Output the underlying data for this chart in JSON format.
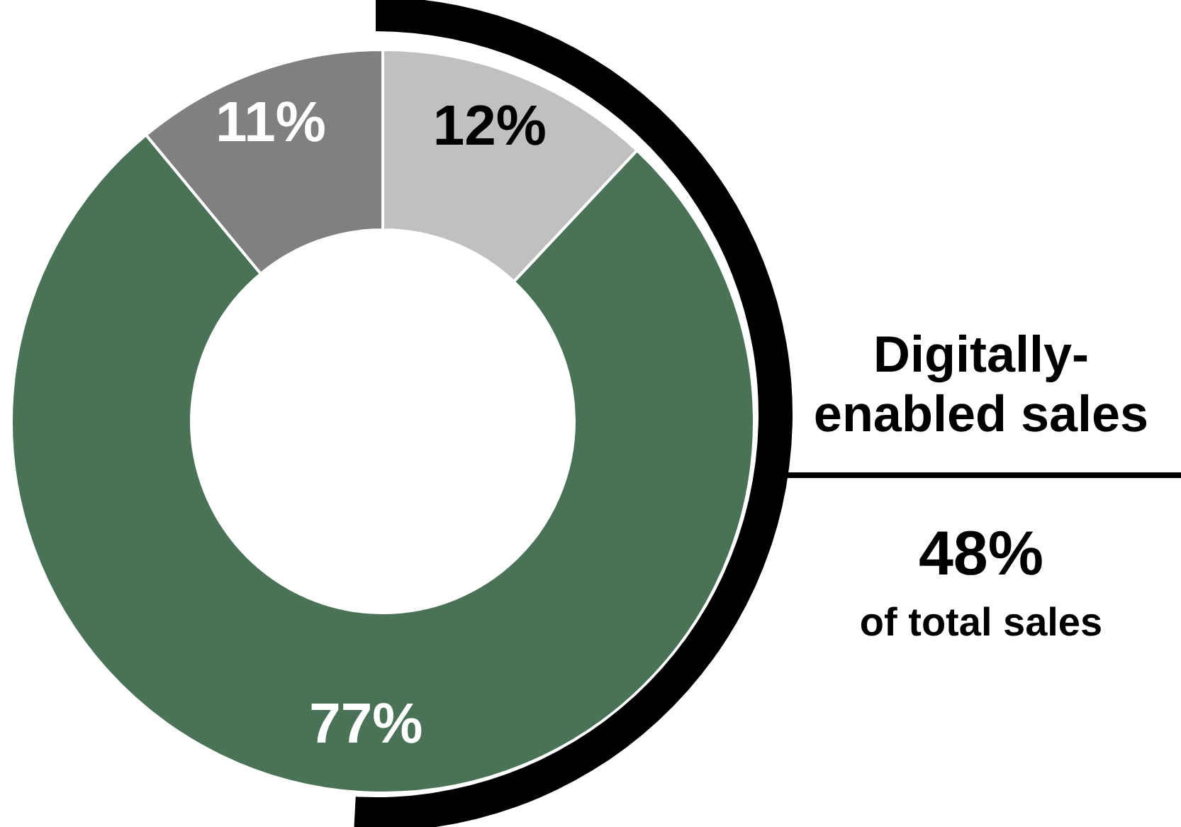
{
  "chart_data": {
    "type": "donut",
    "categories": [
      null,
      null,
      null
    ],
    "values": [
      12,
      77,
      11
    ],
    "colors": [
      "#c0c0c0",
      "#4a7257",
      "#808080"
    ],
    "value_labels": [
      "12%",
      "77%",
      "11%"
    ],
    "annotations": [
      "Digitally-\nenabled sales",
      "48%",
      "of total sales"
    ]
  }
}
